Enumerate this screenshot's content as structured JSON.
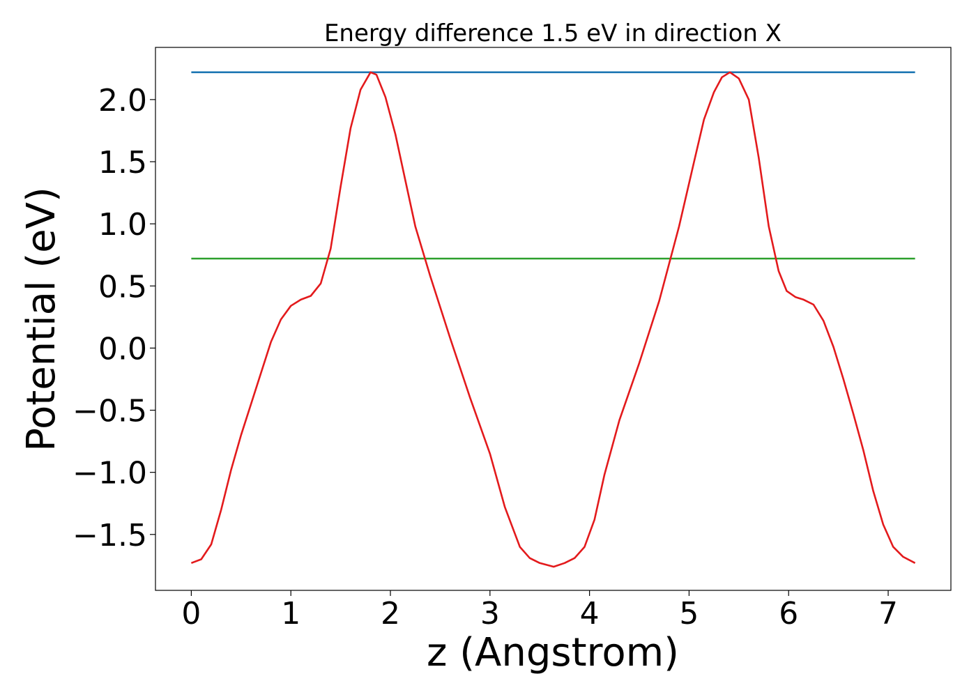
{
  "chart_data": {
    "type": "line",
    "title": "Energy difference 1.5 eV in direction X",
    "xlabel": "z (Angstrom)",
    "ylabel": "Potential (eV)",
    "xlim": [
      -0.36,
      7.63
    ],
    "ylim": [
      -1.95,
      2.42
    ],
    "xticks": [
      0,
      1,
      2,
      3,
      4,
      5,
      6,
      7
    ],
    "xtick_labels": [
      "0",
      "1",
      "2",
      "3",
      "4",
      "5",
      "6",
      "7"
    ],
    "yticks": [
      -1.5,
      -1.0,
      -0.5,
      0.0,
      0.5,
      1.0,
      1.5,
      2.0
    ],
    "ytick_labels": [
      "−1.5",
      "−1.0",
      "−0.5",
      "0.0",
      "0.5",
      "1.0",
      "1.5",
      "2.0"
    ],
    "grid": false,
    "series": [
      {
        "color": "#1f77b4",
        "x": [
          0,
          7.27
        ],
        "y": [
          2.22,
          2.22
        ]
      },
      {
        "color": "#2ca02c",
        "x": [
          0,
          7.27
        ],
        "y": [
          0.72,
          0.72
        ]
      },
      {
        "color": "#e31a1c",
        "x": [
          0,
          0.1,
          0.2,
          0.3,
          0.4,
          0.5,
          0.6,
          0.7,
          0.8,
          0.9,
          1.0,
          1.1,
          1.2,
          1.3,
          1.4,
          1.5,
          1.6,
          1.7,
          1.8,
          1.86,
          1.95,
          2.05,
          2.15,
          2.25,
          2.4,
          2.6,
          2.8,
          3.0,
          3.15,
          3.3,
          3.4,
          3.5,
          3.64,
          3.75,
          3.85,
          3.95,
          4.05,
          4.15,
          4.3,
          4.5,
          4.7,
          4.9,
          5.05,
          5.15,
          5.25,
          5.33,
          5.41,
          5.5,
          5.6,
          5.7,
          5.8,
          5.9,
          5.98,
          6.07,
          6.15,
          6.25,
          6.35,
          6.45,
          6.55,
          6.65,
          6.75,
          6.85,
          6.95,
          7.05,
          7.15,
          7.27
        ],
        "y": [
          -1.73,
          -1.7,
          -1.58,
          -1.3,
          -0.98,
          -0.7,
          -0.45,
          -0.2,
          0.05,
          0.23,
          0.34,
          0.39,
          0.42,
          0.52,
          0.8,
          1.3,
          1.77,
          2.08,
          2.22,
          2.2,
          2.02,
          1.72,
          1.35,
          0.98,
          0.58,
          0.08,
          -0.4,
          -0.85,
          -1.28,
          -1.6,
          -1.69,
          -1.73,
          -1.76,
          -1.73,
          -1.69,
          -1.6,
          -1.38,
          -1.02,
          -0.58,
          -0.12,
          0.38,
          0.98,
          1.5,
          1.84,
          2.06,
          2.18,
          2.22,
          2.17,
          2.0,
          1.53,
          0.98,
          0.62,
          0.46,
          0.41,
          0.39,
          0.35,
          0.22,
          0.01,
          -0.25,
          -0.53,
          -0.82,
          -1.15,
          -1.42,
          -1.6,
          -1.68,
          -1.73
        ]
      }
    ]
  }
}
